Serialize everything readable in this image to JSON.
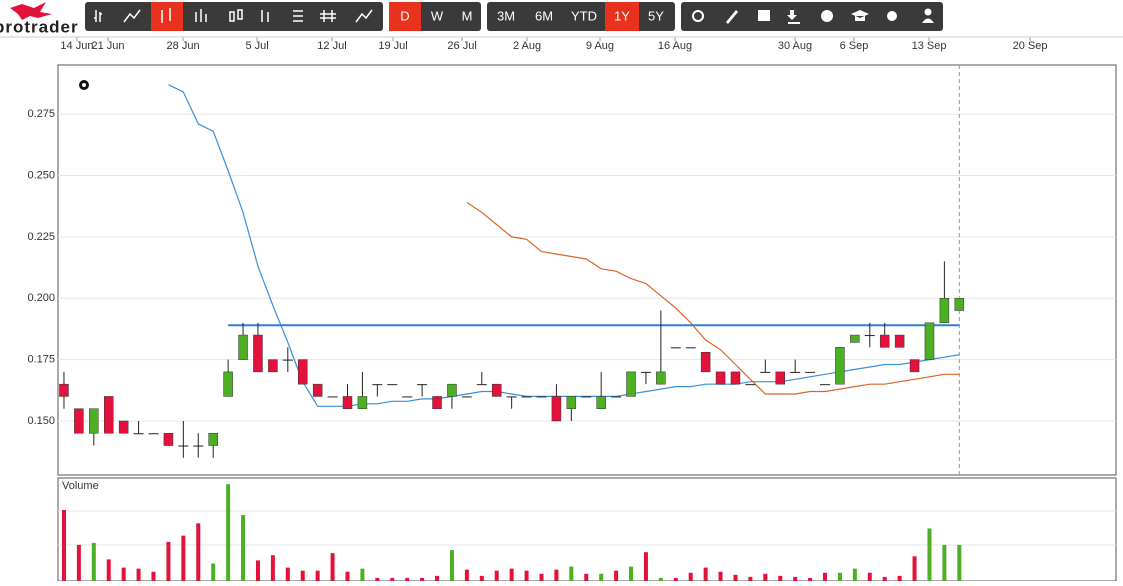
{
  "header": {
    "logo": "protrader",
    "period_buttons": [
      "D",
      "W",
      "M"
    ],
    "range_buttons": [
      "3M",
      "6M",
      "YTD",
      "1Y",
      "5Y"
    ]
  },
  "chart_data": {
    "type": "candlestick",
    "open": [
      0.165,
      0.155,
      0.145,
      0.16,
      0.15,
      0.145,
      0.145,
      0.145,
      0.14,
      0.14,
      0.14,
      0.16,
      0.175,
      0.185,
      0.175,
      0.175,
      0.175,
      0.165,
      0.16,
      0.16,
      0.155,
      0.165,
      0.165,
      0.16,
      0.165,
      0.16,
      0.16,
      0.16,
      0.165,
      0.165,
      0.16,
      0.16,
      0.16,
      0.16,
      0.155,
      0.16,
      0.155,
      0.16,
      0.16,
      0.17,
      0.165,
      0.18,
      0.18,
      0.178,
      0.17,
      0.17,
      0.165,
      0.17,
      0.17,
      0.17,
      0.17,
      0.165,
      0.165,
      0.182,
      0.185,
      0.185,
      0.185,
      0.175,
      0.175,
      0.19,
      0.195
    ],
    "high": [
      0.17,
      0.155,
      0.155,
      0.16,
      0.15,
      0.15,
      0.145,
      0.145,
      0.15,
      0.145,
      0.145,
      0.175,
      0.19,
      0.19,
      0.175,
      0.18,
      0.175,
      0.165,
      0.16,
      0.165,
      0.17,
      0.165,
      0.165,
      0.16,
      0.165,
      0.16,
      0.165,
      0.16,
      0.17,
      0.165,
      0.16,
      0.16,
      0.16,
      0.165,
      0.16,
      0.16,
      0.17,
      0.16,
      0.17,
      0.17,
      0.195,
      0.18,
      0.18,
      0.178,
      0.17,
      0.17,
      0.165,
      0.175,
      0.17,
      0.175,
      0.17,
      0.165,
      0.18,
      0.185,
      0.19,
      0.19,
      0.185,
      0.175,
      0.19,
      0.215,
      0.2
    ],
    "low": [
      0.155,
      0.145,
      0.14,
      0.145,
      0.145,
      0.145,
      0.145,
      0.14,
      0.135,
      0.135,
      0.135,
      0.16,
      0.175,
      0.17,
      0.17,
      0.17,
      0.165,
      0.16,
      0.16,
      0.155,
      0.155,
      0.16,
      0.165,
      0.16,
      0.16,
      0.155,
      0.155,
      0.16,
      0.165,
      0.16,
      0.155,
      0.16,
      0.16,
      0.15,
      0.15,
      0.16,
      0.155,
      0.16,
      0.16,
      0.165,
      0.165,
      0.18,
      0.18,
      0.17,
      0.165,
      0.165,
      0.165,
      0.17,
      0.165,
      0.17,
      0.17,
      0.165,
      0.165,
      0.182,
      0.18,
      0.18,
      0.18,
      0.17,
      0.175,
      0.19,
      0.195
    ],
    "close": [
      0.16,
      0.145,
      0.155,
      0.145,
      0.145,
      0.145,
      0.145,
      0.14,
      0.14,
      0.14,
      0.145,
      0.17,
      0.185,
      0.17,
      0.17,
      0.175,
      0.165,
      0.16,
      0.16,
      0.155,
      0.16,
      0.165,
      0.165,
      0.16,
      0.165,
      0.155,
      0.165,
      0.16,
      0.165,
      0.16,
      0.16,
      0.16,
      0.16,
      0.15,
      0.16,
      0.16,
      0.16,
      0.16,
      0.17,
      0.17,
      0.17,
      0.18,
      0.18,
      0.17,
      0.165,
      0.165,
      0.165,
      0.17,
      0.165,
      0.17,
      0.17,
      0.165,
      0.18,
      0.185,
      0.185,
      0.18,
      0.18,
      0.17,
      0.19,
      0.2,
      0.2
    ],
    "up_color": "#4caf24",
    "down_color": "#e3123c",
    "overlays": [
      {
        "color": "#3a8fd9",
        "values": [
          null,
          null,
          null,
          null,
          null,
          null,
          null,
          0.287,
          0.284,
          0.271,
          0.268,
          0.252,
          0.235,
          0.213,
          0.197,
          0.182,
          0.166,
          0.156,
          0.156,
          0.156,
          0.157,
          0.157,
          0.158,
          0.158,
          0.159,
          0.159,
          0.16,
          0.161,
          0.162,
          0.162,
          0.161,
          0.16,
          0.16,
          0.16,
          0.16,
          0.16,
          0.16,
          0.16,
          0.161,
          0.162,
          0.163,
          0.164,
          0.164,
          0.165,
          0.165,
          0.165,
          0.166,
          0.166,
          0.166,
          0.167,
          0.168,
          0.169,
          0.17,
          0.171,
          0.172,
          0.173,
          0.173,
          0.174,
          0.175,
          0.176,
          0.177
        ]
      },
      {
        "color": "#d9652a",
        "values": [
          null,
          null,
          null,
          null,
          null,
          null,
          null,
          null,
          null,
          null,
          null,
          null,
          null,
          null,
          null,
          null,
          null,
          null,
          null,
          null,
          null,
          null,
          null,
          null,
          null,
          null,
          null,
          0.239,
          0.235,
          0.23,
          0.225,
          0.224,
          0.219,
          0.218,
          0.217,
          0.216,
          0.212,
          0.211,
          0.208,
          0.206,
          0.201,
          0.196,
          0.19,
          0.183,
          0.179,
          0.173,
          0.167,
          0.161,
          0.161,
          0.161,
          0.162,
          0.162,
          0.163,
          0.164,
          0.165,
          0.165,
          0.166,
          0.167,
          0.168,
          0.169,
          0.169
        ]
      }
    ],
    "hline": {
      "value": 0.189,
      "color": "#2e7fd6"
    },
    "ylim": [
      0.128,
      0.295
    ],
    "yticks": [
      {
        "value": 0.15,
        "label": "0.150"
      },
      0.175,
      {
        "value": 0.2,
        "label": "0.200"
      },
      0.225,
      {
        "value": 0.25,
        "label": "0.250"
      },
      0.275
    ],
    "xlim": [
      -0.4,
      70.5
    ],
    "xticks": [
      {
        "value": 0.87,
        "label": "14 Jun"
      },
      {
        "value": 2.95,
        "label": "21 Jun"
      },
      {
        "value": 7.98,
        "label": "28 Jun"
      },
      {
        "value": 12.94,
        "label": "5 Jul"
      },
      {
        "value": 17.96,
        "label": "12 Jul"
      },
      {
        "value": 22.05,
        "label": "19 Jul"
      },
      {
        "value": 26.68,
        "label": "26 Jul"
      },
      {
        "value": 31.03,
        "label": "2 Aug"
      },
      {
        "value": 35.92,
        "label": "9 Aug"
      },
      {
        "value": 40.95,
        "label": "16 Aug"
      },
      {
        "value": 48.99,
        "label": "30 Aug"
      },
      {
        "value": 52.94,
        "label": "6 Sep"
      },
      {
        "value": 57.97,
        "label": "13 Sep"
      },
      {
        "value": 64.74,
        "label": "20 Sep"
      }
    ],
    "grid": true,
    "volume": {
      "label": "Volume",
      "ylim": [
        0,
        100
      ],
      "values": [
        69,
        35,
        37,
        21,
        13,
        12,
        9,
        38,
        44,
        56,
        17,
        94,
        64,
        20,
        25,
        13,
        10,
        10,
        27,
        9,
        12,
        3,
        3,
        3,
        3,
        5,
        30,
        11,
        5,
        10,
        12,
        10,
        7,
        11,
        14,
        7,
        7,
        10,
        14,
        28,
        3,
        3,
        8,
        13,
        9,
        6,
        4,
        7,
        5,
        4,
        3,
        8,
        8,
        12,
        8,
        4,
        5,
        24,
        51,
        35,
        35
      ]
    }
  }
}
